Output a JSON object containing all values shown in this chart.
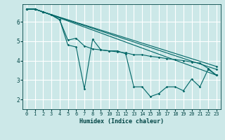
{
  "xlabel": "Humidex (Indice chaleur)",
  "background_color": "#cce8e8",
  "grid_color": "#ffffff",
  "line_color": "#006666",
  "xlim": [
    -0.5,
    23.5
  ],
  "ylim": [
    1.5,
    6.9
  ],
  "yticks": [
    2,
    3,
    4,
    5,
    6
  ],
  "xticks": [
    0,
    1,
    2,
    3,
    4,
    5,
    6,
    7,
    8,
    9,
    10,
    11,
    12,
    13,
    14,
    15,
    16,
    17,
    18,
    19,
    20,
    21,
    22,
    23
  ],
  "lines": [
    {
      "x": [
        0,
        1,
        2,
        3,
        4,
        5,
        6,
        7,
        8,
        9,
        10,
        11,
        12,
        13,
        14,
        15,
        16,
        17,
        18,
        19,
        20,
        21,
        22,
        23
      ],
      "y": [
        6.65,
        6.65,
        6.5,
        6.35,
        6.1,
        4.8,
        4.7,
        2.55,
        5.1,
        4.55,
        4.5,
        4.5,
        4.35,
        2.65,
        2.65,
        2.15,
        2.3,
        2.65,
        2.65,
        2.45,
        3.05,
        2.65,
        3.55,
        3.25
      ]
    },
    {
      "x": [
        0,
        1,
        2,
        3,
        4,
        5,
        6,
        7,
        8,
        9,
        10,
        11,
        12,
        13,
        14,
        15,
        16,
        17,
        18,
        19,
        20,
        21,
        22,
        23
      ],
      "y": [
        6.65,
        6.65,
        6.5,
        6.35,
        6.1,
        5.05,
        5.15,
        4.75,
        4.6,
        4.55,
        4.5,
        4.45,
        4.4,
        4.3,
        4.3,
        4.22,
        4.17,
        4.1,
        4.05,
        4.0,
        3.93,
        3.87,
        3.6,
        3.25
      ]
    },
    {
      "x": [
        0,
        1,
        2,
        23
      ],
      "y": [
        6.65,
        6.65,
        6.5,
        3.7
      ]
    },
    {
      "x": [
        0,
        1,
        2,
        23
      ],
      "y": [
        6.65,
        6.65,
        6.5,
        3.55
      ]
    },
    {
      "x": [
        0,
        1,
        2,
        23
      ],
      "y": [
        6.65,
        6.65,
        6.5,
        3.25
      ]
    }
  ]
}
